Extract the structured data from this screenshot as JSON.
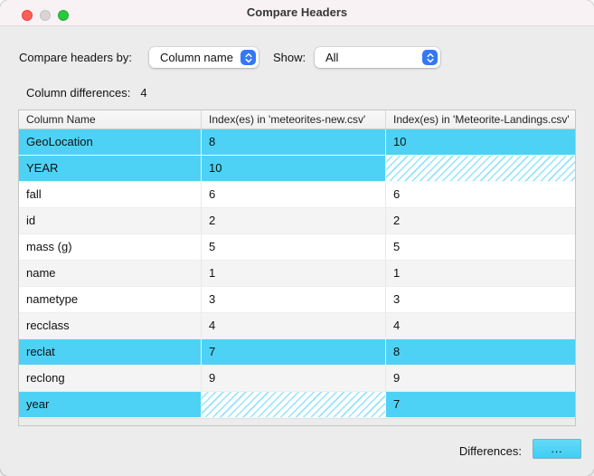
{
  "window": {
    "title": "Compare Headers"
  },
  "titlebar_icons": [
    "close-button",
    "minimize-button",
    "zoom-button"
  ],
  "controls": {
    "compare_by_label": "Compare headers by:",
    "compare_by_value": "Column name",
    "show_label": "Show:",
    "show_value": "All"
  },
  "summary": {
    "label": "Column differences:",
    "value": "4"
  },
  "table": {
    "columns": [
      "Column Name",
      "Index(es) in 'meteorites-new.csv'",
      "Index(es) in 'Meteorite-Landings.csv'"
    ],
    "rows": [
      {
        "name": "GeoLocation",
        "idx_new": "8",
        "idx_landings": "10",
        "highlight": true,
        "hatch_new": false,
        "hatch_landings": false
      },
      {
        "name": "YEAR",
        "idx_new": "10",
        "idx_landings": "",
        "highlight": true,
        "hatch_new": false,
        "hatch_landings": true
      },
      {
        "name": "fall",
        "idx_new": "6",
        "idx_landings": "6",
        "highlight": false,
        "hatch_new": false,
        "hatch_landings": false
      },
      {
        "name": "id",
        "idx_new": "2",
        "idx_landings": "2",
        "highlight": false,
        "hatch_new": false,
        "hatch_landings": false
      },
      {
        "name": "mass (g)",
        "idx_new": "5",
        "idx_landings": "5",
        "highlight": false,
        "hatch_new": false,
        "hatch_landings": false
      },
      {
        "name": "name",
        "idx_new": "1",
        "idx_landings": "1",
        "highlight": false,
        "hatch_new": false,
        "hatch_landings": false
      },
      {
        "name": "nametype",
        "idx_new": "3",
        "idx_landings": "3",
        "highlight": false,
        "hatch_new": false,
        "hatch_landings": false
      },
      {
        "name": "recclass",
        "idx_new": "4",
        "idx_landings": "4",
        "highlight": false,
        "hatch_new": false,
        "hatch_landings": false
      },
      {
        "name": "reclat",
        "idx_new": "7",
        "idx_landings": "8",
        "highlight": true,
        "hatch_new": false,
        "hatch_landings": false
      },
      {
        "name": "reclong",
        "idx_new": "9",
        "idx_landings": "9",
        "highlight": false,
        "hatch_new": false,
        "hatch_landings": false
      },
      {
        "name": "year",
        "idx_new": "",
        "idx_landings": "7",
        "highlight": true,
        "hatch_new": true,
        "hatch_landings": false
      }
    ]
  },
  "footer": {
    "differences_label": "Differences:",
    "differences_button": "..."
  },
  "colors": {
    "highlight_cyan": "#4dd2f5",
    "accent_blue": "#3478f6",
    "close_red": "#ff5f57",
    "minimize_gray": "#d9d5d7",
    "zoom_green": "#28c840",
    "window_background": "#ececec",
    "titlebar_background": "#f8f2f5"
  }
}
